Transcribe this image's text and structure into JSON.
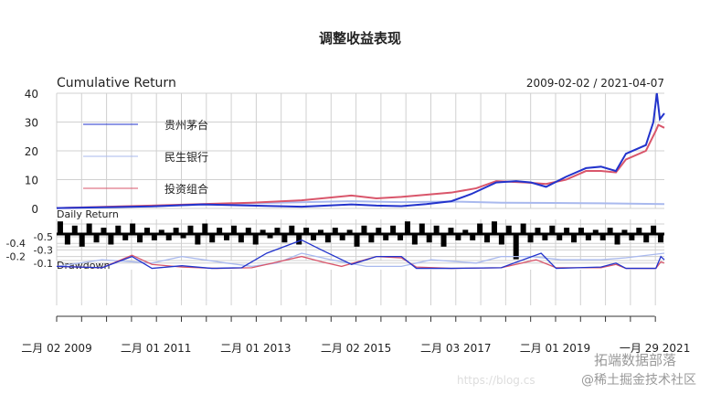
{
  "chart_data": {
    "type": "line",
    "title": "调整收益表现",
    "date_range": "2009-02-02 / 2021-04-07",
    "panels": {
      "cumulative": {
        "title": "Cumulative Return",
        "ylim": [
          0,
          40
        ],
        "yticks": [
          "0",
          "10",
          "20",
          "30",
          "40"
        ]
      },
      "daily": {
        "title": "Daily Return"
      },
      "drawdown": {
        "title": "Drawdown",
        "ylim": [
          -0.5,
          0
        ],
        "yticks": [
          "-0.1",
          "-0.2",
          "-0.3",
          "-0.4",
          "-0.5"
        ]
      }
    },
    "xticks": [
      {
        "date": 2009.09,
        "label": "二月 02 2009"
      },
      {
        "date": 2011.08,
        "label": "二月 01 2011"
      },
      {
        "date": 2013.08,
        "label": "二月 01 2013"
      },
      {
        "date": 2015.09,
        "label": "二月 02 2015"
      },
      {
        "date": 2017.09,
        "label": "二月 03 2017"
      },
      {
        "date": 2019.08,
        "label": "二月 01 2019"
      },
      {
        "date": 2021.08,
        "label": "一月 29 2021"
      }
    ],
    "xlim": [
      2009.09,
      2021.27
    ],
    "grid": true,
    "legend_position": "top-left",
    "series": [
      {
        "name": "贵州茅台",
        "color": "#2233cc",
        "cumulative": [
          [
            2009.09,
            0.1
          ],
          [
            2010,
            0.4
          ],
          [
            2011,
            0.7
          ],
          [
            2012,
            1.4
          ],
          [
            2013,
            1.0
          ],
          [
            2014,
            0.6
          ],
          [
            2015,
            1.4
          ],
          [
            2015.5,
            1.0
          ],
          [
            2016,
            0.8
          ],
          [
            2016.5,
            1.5
          ],
          [
            2017,
            2.5
          ],
          [
            2017.4,
            5
          ],
          [
            2017.9,
            9
          ],
          [
            2018.3,
            9.5
          ],
          [
            2018.6,
            9
          ],
          [
            2018.9,
            7.5
          ],
          [
            2019.3,
            11
          ],
          [
            2019.7,
            14
          ],
          [
            2020,
            14.5
          ],
          [
            2020.3,
            13
          ],
          [
            2020.5,
            19
          ],
          [
            2020.9,
            22
          ],
          [
            2021.05,
            30
          ],
          [
            2021.12,
            40
          ],
          [
            2021.18,
            31
          ],
          [
            2021.27,
            33
          ]
        ],
        "drawdown": [
          [
            2009.09,
            -0.05
          ],
          [
            2010,
            -0.03
          ],
          [
            2010.6,
            -0.2
          ],
          [
            2011,
            -0.02
          ],
          [
            2011.6,
            -0.06
          ],
          [
            2012.2,
            -0.02
          ],
          [
            2012.8,
            -0.03
          ],
          [
            2013.3,
            -0.25
          ],
          [
            2014,
            -0.45
          ],
          [
            2014.4,
            -0.3
          ],
          [
            2015,
            -0.08
          ],
          [
            2015.5,
            -0.2
          ],
          [
            2016,
            -0.2
          ],
          [
            2016.3,
            -0.02
          ],
          [
            2017,
            -0.02
          ],
          [
            2018,
            -0.03
          ],
          [
            2018.8,
            -0.25
          ],
          [
            2019.1,
            -0.02
          ],
          [
            2020,
            -0.04
          ],
          [
            2020.3,
            -0.1
          ],
          [
            2020.5,
            -0.02
          ],
          [
            2021.1,
            -0.02
          ],
          [
            2021.2,
            -0.2
          ],
          [
            2021.27,
            -0.15
          ]
        ]
      },
      {
        "name": "民生银行",
        "color": "#a9b9ee",
        "cumulative": [
          [
            2009.09,
            0.1
          ],
          [
            2011,
            0.8
          ],
          [
            2013,
            1.8
          ],
          [
            2015,
            2.5
          ],
          [
            2016,
            2.2
          ],
          [
            2017,
            2.4
          ],
          [
            2018,
            2.0
          ],
          [
            2019,
            1.9
          ],
          [
            2020,
            1.8
          ],
          [
            2021.27,
            1.5
          ]
        ],
        "drawdown": [
          [
            2009.09,
            -0.05
          ],
          [
            2010,
            -0.15
          ],
          [
            2011,
            -0.1
          ],
          [
            2011.6,
            -0.2
          ],
          [
            2012.5,
            -0.1
          ],
          [
            2013,
            -0.05
          ],
          [
            2013.5,
            -0.1
          ],
          [
            2014,
            -0.25
          ],
          [
            2014.6,
            -0.15
          ],
          [
            2015.3,
            -0.05
          ],
          [
            2016,
            -0.05
          ],
          [
            2016.6,
            -0.15
          ],
          [
            2017.5,
            -0.1
          ],
          [
            2018,
            -0.2
          ],
          [
            2018.6,
            -0.2
          ],
          [
            2019.2,
            -0.15
          ],
          [
            2020,
            -0.15
          ],
          [
            2020.5,
            -0.18
          ],
          [
            2021.27,
            -0.25
          ]
        ]
      },
      {
        "name": "投资组合",
        "color": "#d9566b",
        "cumulative": [
          [
            2009.09,
            0.1
          ],
          [
            2011,
            1.0
          ],
          [
            2013,
            2.0
          ],
          [
            2014,
            2.8
          ],
          [
            2015,
            4.5
          ],
          [
            2015.5,
            3.5
          ],
          [
            2016,
            4
          ],
          [
            2017,
            5.5
          ],
          [
            2017.5,
            7
          ],
          [
            2017.9,
            9.5
          ],
          [
            2018.5,
            9
          ],
          [
            2018.9,
            8.5
          ],
          [
            2019.3,
            10
          ],
          [
            2019.7,
            13
          ],
          [
            2020,
            13
          ],
          [
            2020.3,
            12.5
          ],
          [
            2020.5,
            17
          ],
          [
            2020.9,
            20
          ],
          [
            2021.1,
            27
          ],
          [
            2021.15,
            29
          ],
          [
            2021.27,
            28
          ]
        ],
        "drawdown": [
          [
            2009.09,
            -0.05
          ],
          [
            2010,
            -0.03
          ],
          [
            2010.6,
            -0.22
          ],
          [
            2011,
            -0.08
          ],
          [
            2011.6,
            -0.04
          ],
          [
            2012.3,
            -0.02
          ],
          [
            2013,
            -0.03
          ],
          [
            2013.3,
            -0.08
          ],
          [
            2014,
            -0.2
          ],
          [
            2014.4,
            -0.12
          ],
          [
            2014.8,
            -0.05
          ],
          [
            2015.5,
            -0.2
          ],
          [
            2016,
            -0.18
          ],
          [
            2016.3,
            -0.04
          ],
          [
            2017,
            -0.02
          ],
          [
            2018,
            -0.03
          ],
          [
            2018.7,
            -0.15
          ],
          [
            2019.1,
            -0.03
          ],
          [
            2020,
            -0.03
          ],
          [
            2020.3,
            -0.08
          ],
          [
            2020.5,
            -0.02
          ],
          [
            2021.1,
            -0.02
          ],
          [
            2021.2,
            -0.12
          ],
          [
            2021.27,
            -0.1
          ]
        ]
      }
    ],
    "daily_returns": [
      0.06,
      -0.05,
      0.04,
      -0.06,
      0.05,
      -0.04,
      0.03,
      -0.05,
      0.04,
      -0.03,
      0.05,
      -0.04,
      0.03,
      -0.03,
      0.02,
      -0.03,
      0.03,
      -0.02,
      0.04,
      -0.05,
      0.05,
      -0.04,
      0.03,
      -0.03,
      0.04,
      -0.04,
      0.03,
      -0.05,
      0.02,
      -0.02,
      0.03,
      -0.04,
      0.04,
      -0.05,
      0.03,
      -0.03,
      0.02,
      -0.04,
      0.03,
      -0.03,
      0.02,
      -0.06,
      0.04,
      -0.04,
      0.03,
      -0.03,
      0.04,
      -0.03,
      0.06,
      -0.05,
      0.05,
      -0.04,
      0.04,
      -0.06,
      0.03,
      -0.03,
      0.02,
      -0.03,
      0.05,
      -0.04,
      0.06,
      -0.05,
      0.04,
      -0.12,
      0.05,
      -0.04,
      0.03,
      -0.03,
      0.04,
      -0.03,
      0.03,
      -0.04,
      0.03,
      -0.03,
      0.02,
      -0.03,
      0.03,
      -0.05,
      0.02,
      -0.03,
      0.03,
      -0.04,
      0.04,
      -0.04
    ]
  },
  "watermark": {
    "brand": "拓端数据部落",
    "site": "@稀土掘金技术社区",
    "url": "https://blog.cs"
  }
}
